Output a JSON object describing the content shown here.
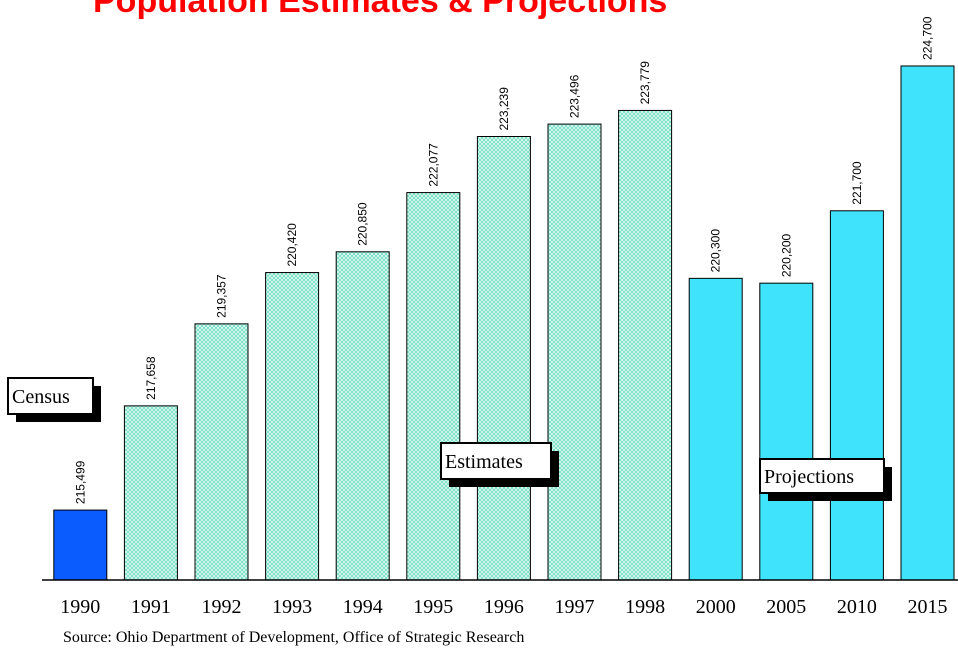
{
  "chart_data": {
    "type": "bar",
    "title": "Population Estimates & Projections",
    "categories": [
      "1990",
      "1991",
      "1992",
      "1993",
      "1994",
      "1995",
      "1996",
      "1997",
      "1998",
      "2000",
      "2005",
      "2010",
      "2015"
    ],
    "series": [
      {
        "name": "Census",
        "color": "#0a5cff",
        "hatch": false,
        "values": [
          215499,
          null,
          null,
          null,
          null,
          null,
          null,
          null,
          null,
          null,
          null,
          null,
          null
        ],
        "value_labels": [
          "215,499",
          null,
          null,
          null,
          null,
          null,
          null,
          null,
          null,
          null,
          null,
          null,
          null
        ]
      },
      {
        "name": "Estimates",
        "color": "#7fe3c9",
        "hatch": true,
        "values": [
          null,
          217658,
          219357,
          220420,
          220850,
          222077,
          223239,
          223496,
          223779,
          null,
          null,
          null,
          null
        ],
        "value_labels": [
          null,
          "217,658",
          "219,357",
          "220,420",
          "220,850",
          "222,077",
          "223,239",
          "223,496",
          "223,779",
          null,
          null,
          null,
          null
        ]
      },
      {
        "name": "Projections",
        "color": "#3fe3fb",
        "hatch": false,
        "values": [
          null,
          null,
          null,
          null,
          null,
          null,
          null,
          null,
          null,
          220300,
          220200,
          221700,
          224700
        ],
        "value_labels": [
          null,
          null,
          null,
          null,
          null,
          null,
          null,
          null,
          null,
          "220,300",
          "220,200",
          "221,700",
          "224,700"
        ]
      }
    ],
    "ylim": [
      214050,
      225000
    ],
    "source": "Source: Ohio Department of Development, Office of Strategic Research"
  }
}
